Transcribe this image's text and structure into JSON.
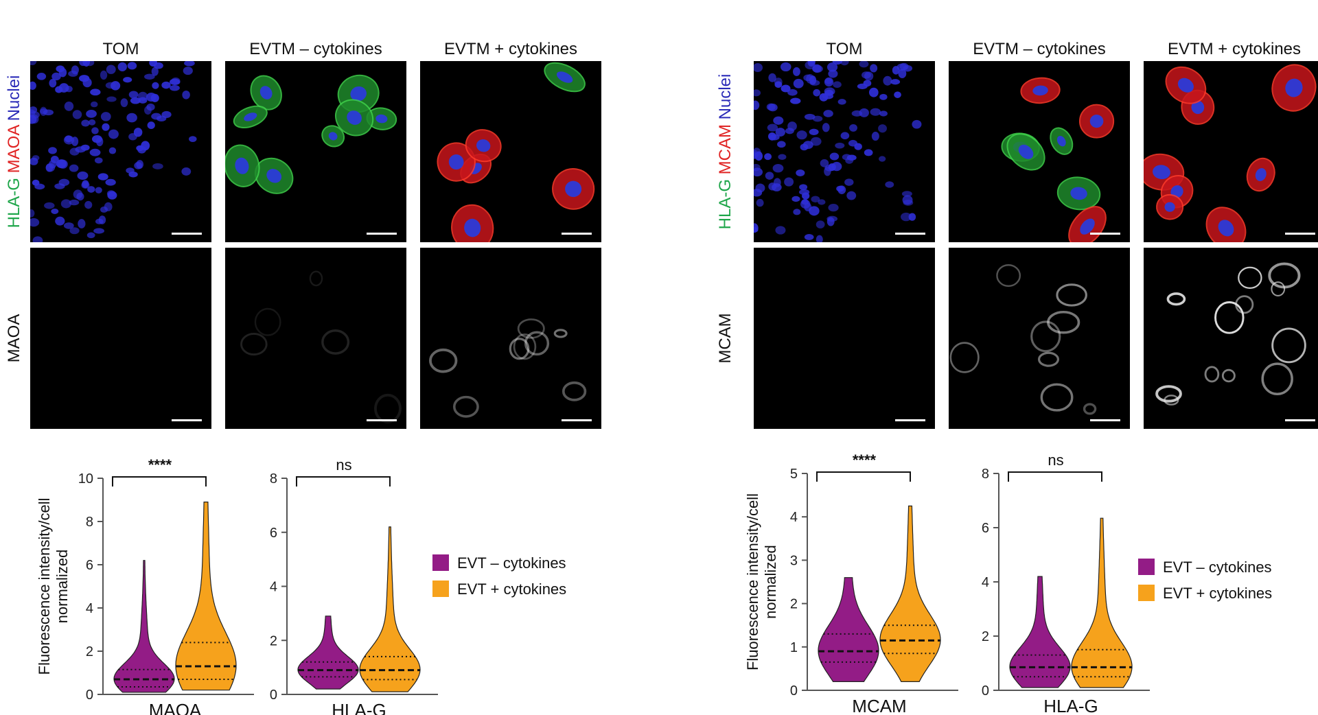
{
  "panels": [
    {
      "columns": [
        "TOM",
        "EVTM – cytokines",
        "EVTM + cytokines"
      ],
      "merge_label_parts": [
        {
          "text": "HLA-G",
          "color": "#1fa64a"
        },
        {
          "text": " MAOA",
          "color": "#e02424"
        },
        {
          "text": " Nuclei",
          "color": "#2b2bb8"
        }
      ],
      "single_channel_label": "MAOA",
      "micro": [
        {
          "row": "merge",
          "col": 0,
          "nuclei_field": true,
          "cells": 0,
          "red": "none"
        },
        {
          "row": "merge",
          "col": 1,
          "nuclei_field": false,
          "cells": 8,
          "red": "none"
        },
        {
          "row": "merge",
          "col": 2,
          "nuclei_field": false,
          "cells": 6,
          "red": "some"
        },
        {
          "row": "single",
          "col": 0,
          "brightness": "none"
        },
        {
          "row": "single",
          "col": 1,
          "brightness": "faint"
        },
        {
          "row": "single",
          "col": 2,
          "brightness": "medium"
        }
      ]
    },
    {
      "columns": [
        "TOM",
        "EVTM – cytokines",
        "EVTM + cytokines"
      ],
      "merge_label_parts": [
        {
          "text": "HLA-G",
          "color": "#1fa64a"
        },
        {
          "text": " MCAM",
          "color": "#e02424"
        },
        {
          "text": " Nuclei",
          "color": "#2b2bb8"
        }
      ],
      "single_channel_label": "MCAM",
      "micro": [
        {
          "row": "merge",
          "col": 0,
          "nuclei_field": true,
          "cells": 0,
          "red": "none"
        },
        {
          "row": "merge",
          "col": 1,
          "nuclei_field": false,
          "cells": 7,
          "red": "some"
        },
        {
          "row": "merge",
          "col": 2,
          "nuclei_field": false,
          "cells": 8,
          "red": "strong"
        },
        {
          "row": "single",
          "col": 0,
          "brightness": "none"
        },
        {
          "row": "single",
          "col": 1,
          "brightness": "medium"
        },
        {
          "row": "single",
          "col": 2,
          "brightness": "strong"
        }
      ]
    }
  ],
  "chart_data": [
    {
      "type": "violin",
      "xlabel": "MAOA",
      "ylabel_lines": [
        "Fluorescence intensity/cell",
        "normalized"
      ],
      "ylim": [
        0,
        10
      ],
      "yticks": [
        0,
        2,
        4,
        6,
        8,
        10
      ],
      "significance": "****",
      "series": [
        {
          "name": "EVT – cytokines",
          "color": "#931c86",
          "min": 0.1,
          "max": 6.2,
          "median": 0.7,
          "q1": 0.35,
          "q3": 1.15
        },
        {
          "name": "EVT + cytokines",
          "color": "#f6a21c",
          "min": 0.2,
          "max": 8.9,
          "median": 1.3,
          "q1": 0.7,
          "q3": 2.4
        }
      ]
    },
    {
      "type": "violin",
      "xlabel": "HLA-G",
      "ylim": [
        0,
        8
      ],
      "yticks": [
        0,
        2,
        4,
        6,
        8
      ],
      "significance": "ns",
      "series": [
        {
          "name": "EVT – cytokines",
          "color": "#931c86",
          "min": 0.2,
          "max": 2.9,
          "median": 0.9,
          "q1": 0.65,
          "q3": 1.2
        },
        {
          "name": "EVT + cytokines",
          "color": "#f6a21c",
          "min": 0.1,
          "max": 6.2,
          "median": 0.9,
          "q1": 0.55,
          "q3": 1.4
        }
      ]
    },
    {
      "type": "violin",
      "xlabel": "MCAM",
      "ylabel_lines": [
        "Fluorescence intensity/cell",
        "normalized"
      ],
      "ylim": [
        0,
        5
      ],
      "yticks": [
        0,
        1,
        2,
        3,
        4,
        5
      ],
      "significance": "****",
      "series": [
        {
          "name": "EVT – cytokines",
          "color": "#931c86",
          "min": 0.2,
          "max": 2.6,
          "median": 0.9,
          "q1": 0.65,
          "q3": 1.3
        },
        {
          "name": "EVT + cytokines",
          "color": "#f6a21c",
          "min": 0.2,
          "max": 4.25,
          "median": 1.15,
          "q1": 0.85,
          "q3": 1.5
        }
      ]
    },
    {
      "type": "violin",
      "xlabel": "HLA-G",
      "ylim": [
        0,
        8
      ],
      "yticks": [
        0,
        2,
        4,
        6,
        8
      ],
      "significance": "ns",
      "series": [
        {
          "name": "EVT – cytokines",
          "color": "#931c86",
          "min": 0.1,
          "max": 4.2,
          "median": 0.85,
          "q1": 0.5,
          "q3": 1.3
        },
        {
          "name": "EVT + cytokines",
          "color": "#f6a21c",
          "min": 0.1,
          "max": 6.35,
          "median": 0.85,
          "q1": 0.5,
          "q3": 1.5
        }
      ]
    }
  ],
  "legend": [
    {
      "label": "EVT – cytokines",
      "color": "#931c86"
    },
    {
      "label": "EVT + cytokines",
      "color": "#f6a21c"
    }
  ]
}
